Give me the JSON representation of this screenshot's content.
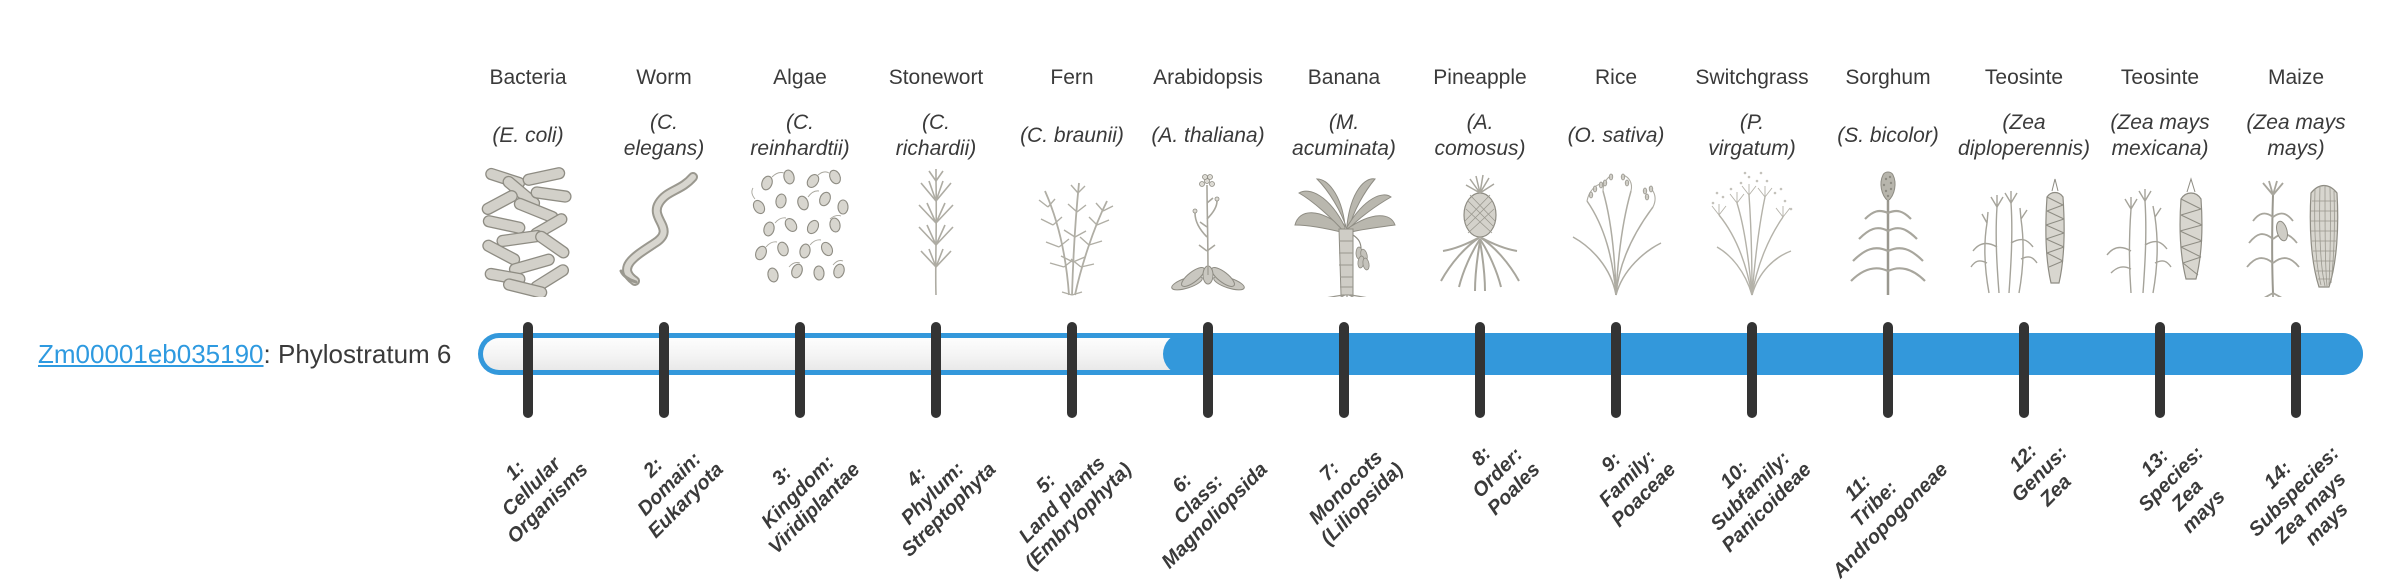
{
  "figure": {
    "type": "phylostratigraphy-bar",
    "total_strata": 14
  },
  "gene": {
    "id": "Zm00001eb035190",
    "annotation_suffix": ": Phylostratum 6",
    "phylostratum": 6
  },
  "colors": {
    "bar_blue": "#3398db",
    "bar_track_light": "#f4f4f4",
    "tick_dark": "#333333",
    "text_dark": "#3a3a3a",
    "link_blue": "#2e9ae0",
    "illustration_gray": "#9a988f"
  },
  "organisms": [
    {
      "name": "Bacteria",
      "species": "(E. coli)",
      "icon": "bacteria-icon"
    },
    {
      "name": "Worm",
      "species": "(C. elegans)",
      "icon": "worm-icon"
    },
    {
      "name": "Algae",
      "species": "(C. reinhardtii)",
      "icon": "algae-icon"
    },
    {
      "name": "Stonewort",
      "species": "(C. richardii)",
      "icon": "stonewort-icon"
    },
    {
      "name": "Fern",
      "species": "(C. braunii)",
      "icon": "fern-icon"
    },
    {
      "name": "Arabidopsis",
      "species": "(A. thaliana)",
      "icon": "arabidopsis-icon"
    },
    {
      "name": "Banana",
      "species": "(M. acuminata)",
      "icon": "banana-icon"
    },
    {
      "name": "Pineapple",
      "species": "(A. comosus)",
      "icon": "pineapple-icon"
    },
    {
      "name": "Rice",
      "species": "(O. sativa)",
      "icon": "rice-icon"
    },
    {
      "name": "Switchgrass",
      "species": "(P. virgatum)",
      "icon": "switchgrass-icon"
    },
    {
      "name": "Sorghum",
      "species": "(S. bicolor)",
      "icon": "sorghum-icon"
    },
    {
      "name": "Teosinte",
      "species": "(Zea diploperennis)",
      "icon": "teosinte-diploperennis-icon"
    },
    {
      "name": "Teosinte",
      "species": "(Zea mays mexicana)",
      "icon": "teosinte-mexicana-icon"
    },
    {
      "name": "Maize",
      "species": "(Zea mays mays)",
      "icon": "maize-icon"
    }
  ],
  "phylostrata": [
    {
      "lines": [
        "1:",
        "Cellular",
        "Organisms"
      ]
    },
    {
      "lines": [
        "2:",
        "Domain:",
        "Eukaryota"
      ]
    },
    {
      "lines": [
        "3:",
        "Kingdom:",
        "Viridiplantae"
      ]
    },
    {
      "lines": [
        "4:",
        "Phylum:",
        "Streptophyta"
      ]
    },
    {
      "lines": [
        "5:",
        "Land plants",
        "(Embryophyta)"
      ]
    },
    {
      "lines": [
        "6:",
        "Class:",
        "Magnoliopsida"
      ]
    },
    {
      "lines": [
        "7:",
        "Monocots",
        "(Liliopsida)"
      ]
    },
    {
      "lines": [
        "8:",
        "Order:",
        "Poales"
      ]
    },
    {
      "lines": [
        "9:",
        "Family:",
        "Poaceae"
      ]
    },
    {
      "lines": [
        "10:",
        "Subfamily:",
        "Panicoideae"
      ]
    },
    {
      "lines": [
        "11:",
        "Tribe:",
        "Andropogoneae"
      ]
    },
    {
      "lines": [
        "12:",
        "Genus:",
        "Zea"
      ]
    },
    {
      "lines": [
        "13:",
        "Species:",
        "Zea",
        "mays"
      ]
    },
    {
      "lines": [
        "14:",
        "Subspecies:",
        "Zea mays",
        "mays"
      ]
    }
  ]
}
